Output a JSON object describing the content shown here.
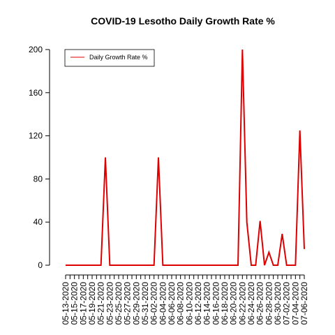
{
  "chart_data": {
    "type": "line",
    "title": "COVID-19 Lesotho Daily Growth Rate %",
    "xlabel": "",
    "ylabel": "",
    "ylim": [
      0,
      200
    ],
    "yticks": [
      0,
      40,
      80,
      120,
      160,
      200
    ],
    "grid": false,
    "legend_position": "top-left",
    "xtick_labels": [
      "05-13-2020",
      "05-15-2020",
      "05-17-2020",
      "05-19-2020",
      "05-21-2020",
      "05-23-2020",
      "05-25-2020",
      "05-27-2020",
      "05-29-2020",
      "05-31-2020",
      "06-02-2020",
      "06-04-2020",
      "06-06-2020",
      "06-08-2020",
      "06-10-2020",
      "06-12-2020",
      "06-14-2020",
      "06-16-2020",
      "06-18-2020",
      "06-20-2020",
      "06-22-2020",
      "06-24-2020",
      "06-26-2020",
      "06-28-2020",
      "06-30-2020",
      "07-02-2020",
      "07-04-2020",
      "07-06-2020"
    ],
    "series": [
      {
        "name": "Daily Growth Rate %",
        "color": "#dd0000",
        "x": [
          "05-13-2020",
          "05-14-2020",
          "05-15-2020",
          "05-16-2020",
          "05-17-2020",
          "05-18-2020",
          "05-19-2020",
          "05-20-2020",
          "05-21-2020",
          "05-22-2020",
          "05-23-2020",
          "05-24-2020",
          "05-25-2020",
          "05-26-2020",
          "05-27-2020",
          "05-28-2020",
          "05-29-2020",
          "05-30-2020",
          "05-31-2020",
          "06-01-2020",
          "06-02-2020",
          "06-03-2020",
          "06-04-2020",
          "06-05-2020",
          "06-06-2020",
          "06-07-2020",
          "06-08-2020",
          "06-09-2020",
          "06-10-2020",
          "06-11-2020",
          "06-12-2020",
          "06-13-2020",
          "06-14-2020",
          "06-15-2020",
          "06-16-2020",
          "06-17-2020",
          "06-18-2020",
          "06-19-2020",
          "06-20-2020",
          "06-21-2020",
          "06-22-2020",
          "06-23-2020",
          "06-24-2020",
          "06-25-2020",
          "06-26-2020",
          "06-27-2020",
          "06-28-2020",
          "06-29-2020",
          "06-30-2020",
          "07-01-2020",
          "07-02-2020",
          "07-03-2020",
          "07-04-2020",
          "07-05-2020",
          "07-06-2020"
        ],
        "values": [
          0,
          0,
          0,
          0,
          0,
          0,
          0,
          0,
          0,
          100,
          0,
          0,
          0,
          0,
          0,
          0,
          0,
          0,
          0,
          0,
          0,
          100,
          0,
          0,
          0,
          0,
          0,
          0,
          0,
          0,
          0,
          0,
          0,
          0,
          0,
          0,
          0,
          0,
          0,
          0,
          200,
          40,
          0,
          0,
          41,
          0,
          12,
          0,
          0,
          29,
          0,
          0,
          0,
          125,
          15
        ]
      }
    ]
  }
}
